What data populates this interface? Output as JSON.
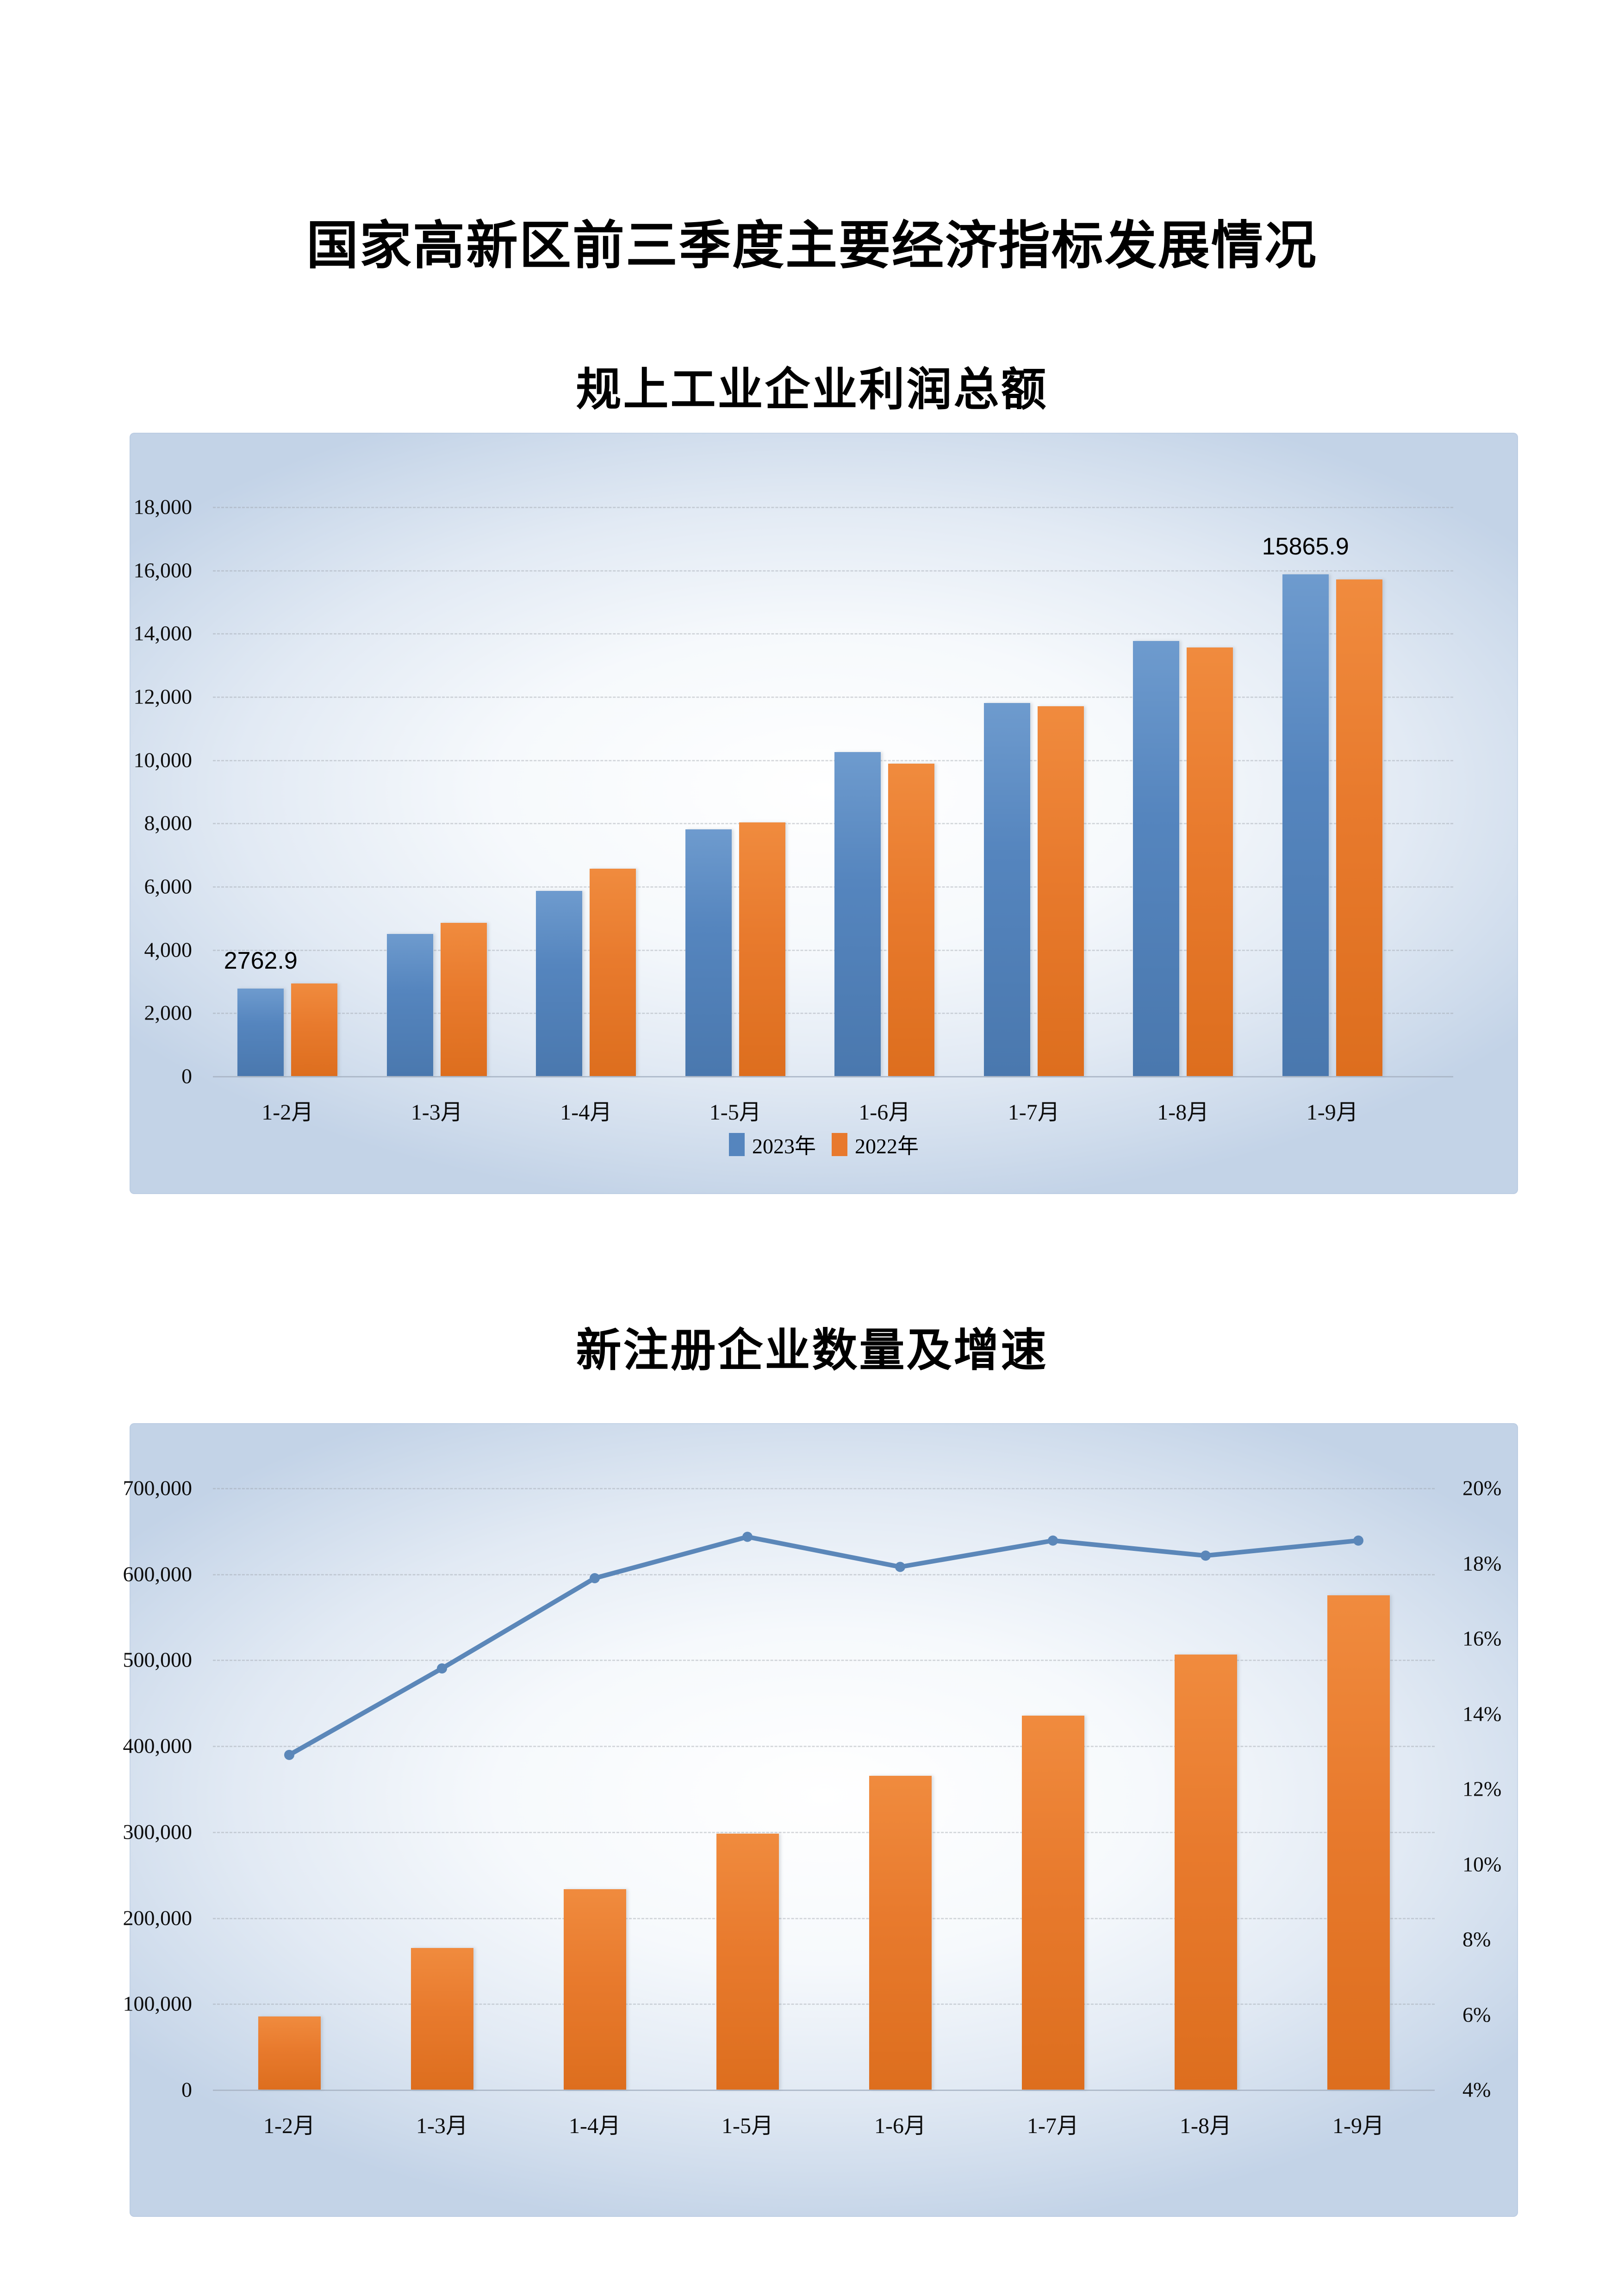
{
  "page": {
    "title": "国家高新区前三季度主要经济指标发展情况"
  },
  "colors": {
    "bar_blue": "#5585BE",
    "bar_orange": "#E8792D",
    "line_blue": "#5B87B9",
    "page_background": "#FFFFFF",
    "chart_background_edge": "#C3D3E7",
    "chart_background_center": "#FFFFFF",
    "text": "#000000"
  },
  "chart_data": [
    {
      "type": "bar",
      "title": "规上工业企业利润总额",
      "categories": [
        "1-2月",
        "1-3月",
        "1-4月",
        "1-5月",
        "1-6月",
        "1-7月",
        "1-8月",
        "1-9月"
      ],
      "series": [
        {
          "name": "2023年",
          "color": "#5585BE",
          "values": [
            2762.9,
            4500,
            5850,
            7800,
            10250,
            11800,
            13750,
            15865.9
          ]
        },
        {
          "name": "2022年",
          "color": "#E8792D",
          "values": [
            2930,
            4850,
            6550,
            8020,
            9880,
            11700,
            13550,
            15700
          ]
        }
      ],
      "ylim": [
        0,
        18000
      ],
      "ytick_step": 2000,
      "ytick_labels": [
        "0",
        "2,000",
        "4,000",
        "6,000",
        "8,000",
        "10,000",
        "12,000",
        "14,000",
        "16,000",
        "18,000"
      ],
      "grid": true,
      "legend_position": "bottom",
      "data_labels": [
        {
          "series": 0,
          "index": 0,
          "text": "2762.9"
        },
        {
          "series": 0,
          "index": 7,
          "text": "15865.9"
        }
      ]
    },
    {
      "type": "bar+line",
      "title": "新注册企业数量及增速",
      "categories": [
        "1-2月",
        "1-3月",
        "1-4月",
        "1-5月",
        "1-6月",
        "1-7月",
        "1-8月",
        "1-9月"
      ],
      "bar_series": {
        "name": "新注册企业数量",
        "color": "#E8792D",
        "values": [
          85000,
          165000,
          233000,
          298000,
          365000,
          435000,
          506000,
          575000
        ]
      },
      "line_series": {
        "name": "增速",
        "color": "#5B87B9",
        "values": [
          12.9,
          15.2,
          17.6,
          18.7,
          17.9,
          18.6,
          18.2,
          18.6
        ]
      },
      "left_ylim": [
        0,
        700000
      ],
      "left_ytick_step": 100000,
      "left_ytick_labels": [
        "0",
        "100,000",
        "200,000",
        "300,000",
        "400,000",
        "500,000",
        "600,000",
        "700,000"
      ],
      "right_ylim": [
        4,
        20
      ],
      "right_ytick_step": 2,
      "right_ytick_labels": [
        "4%",
        "6%",
        "8%",
        "10%",
        "12%",
        "14%",
        "16%",
        "18%",
        "20%"
      ],
      "grid": true,
      "legend_position": "none"
    }
  ]
}
